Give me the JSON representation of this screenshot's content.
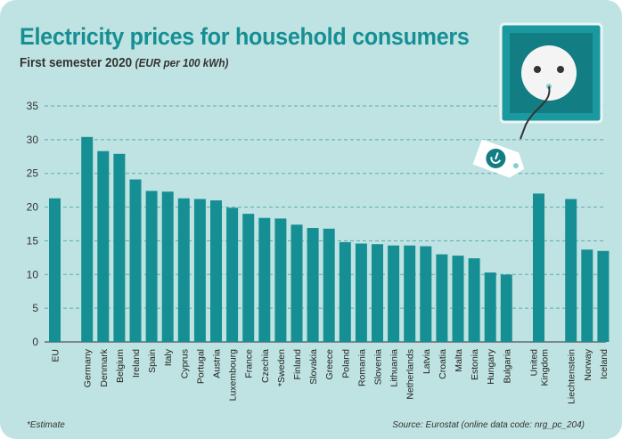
{
  "header": {
    "title": "Electricity prices for household consumers",
    "subtitle": "First semester 2020",
    "subtitle_unit": "(EUR per 100 kWh)"
  },
  "footer": {
    "footnote": "*Estimate",
    "source": "Source: Eurostat (online data code: nrg_pc_204)"
  },
  "colors": {
    "bar": "#168f94",
    "background": "#bfe3e2",
    "grid": "#5ea9ad",
    "socket_frame": "#1a9aa0",
    "socket_inner": "#127d82"
  },
  "chart_data": {
    "type": "bar",
    "title": "Electricity prices for household consumers",
    "subtitle": "First semester 2020 (EUR per 100 kWh)",
    "xlabel": "",
    "ylabel": "",
    "ylim": [
      0,
      35
    ],
    "yticks": [
      0,
      5,
      10,
      15,
      20,
      25,
      30,
      35
    ],
    "grid": true,
    "categories": [
      "EU",
      "Germany",
      "Denmark",
      "Belgium",
      "Ireland",
      "Spain",
      "Italy",
      "Cyprus",
      "Portugal",
      "Austria",
      "Luxembourg",
      "France",
      "Czechia",
      "*Sweden",
      "Finland",
      "Slovakia",
      "Greece",
      "Poland",
      "Romania",
      "Slovenia",
      "Lithuania",
      "Netherlands",
      "Latvia",
      "Croatia",
      "Malta",
      "Estonia",
      "Hungary",
      "Bulgaria",
      "United Kingdom",
      "Liechtenstein",
      "Norway",
      "Iceland"
    ],
    "values": [
      21.3,
      30.4,
      28.3,
      27.9,
      24.1,
      22.4,
      22.3,
      21.3,
      21.2,
      21.0,
      19.9,
      19.0,
      18.4,
      18.3,
      17.4,
      16.9,
      16.8,
      14.8,
      14.6,
      14.5,
      14.3,
      14.3,
      14.2,
      13.0,
      12.8,
      12.4,
      10.3,
      10.0,
      22.0,
      21.2,
      13.7,
      13.5
    ]
  }
}
